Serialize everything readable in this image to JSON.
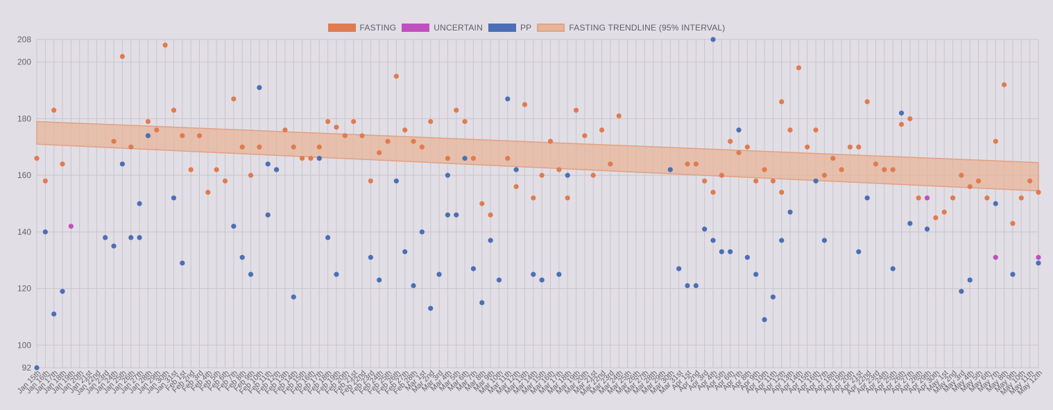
{
  "chart_data": {
    "type": "scatter",
    "title": "",
    "xlabel": "",
    "ylabel": "",
    "ylim": [
      92,
      208
    ],
    "yticks": [
      92,
      100,
      120,
      140,
      160,
      180,
      200,
      208
    ],
    "grid": true,
    "legend_position": "top-center",
    "legend": [
      {
        "label": "FASTING",
        "color": "#e07b4f"
      },
      {
        "label": "UNCERTAIN",
        "color": "#c04fc0"
      },
      {
        "label": "PP",
        "color": "#4a6fb5"
      },
      {
        "label": "FASTING TRENDLINE (95% INTERVAL)",
        "color": "#e8b49a"
      }
    ],
    "x_categories": [
      "Jan 15th",
      "Jan 16th",
      "Jan 17th",
      "Jan 18th",
      "Jan 19th",
      "Jan 20th",
      "Jan 21st",
      "Jan 22nd",
      "Jan 23rd",
      "Jan 24th",
      "Jan 25th",
      "Jan 26th",
      "Jan 27th",
      "Jan 28th",
      "Jan 29th",
      "Jan 30th",
      "Jan 31st",
      "Feb 1st",
      "Feb 2nd",
      "Feb 3rd",
      "Feb 4th",
      "Feb 5th",
      "Feb 6th",
      "Feb 7th",
      "Feb 8th",
      "Feb 9th",
      "Feb 10th",
      "Feb 11th",
      "Feb 12th",
      "Feb 13th",
      "Feb 14th",
      "Feb 15th",
      "Feb 16th",
      "Feb 17th",
      "Feb 18th",
      "Feb 19th",
      "Feb 20th",
      "Feb 21st",
      "Feb 22nd",
      "Feb 23rd",
      "Feb 24th",
      "Feb 25th",
      "Feb 26th",
      "Feb 27th",
      "Feb 28th",
      "Mar 1st",
      "Mar 2nd",
      "Mar 3rd",
      "Mar 4th",
      "Mar 5th",
      "Mar 6th",
      "Mar 7th",
      "Mar 8th",
      "Mar 9th",
      "Mar 10th",
      "Mar 11th",
      "Mar 12th",
      "Mar 13th",
      "Mar 14th",
      "Mar 15th",
      "Mar 16th",
      "Mar 17th",
      "Mar 18th",
      "Mar 19th",
      "Mar 20th",
      "Mar 21st",
      "Mar 22nd",
      "Mar 23rd",
      "Mar 24th",
      "Mar 25th",
      "Mar 26th",
      "Mar 27th",
      "Mar 28th",
      "Mar 29th",
      "Mar 30th",
      "Mar 31st",
      "Apr 1st",
      "Apr 2nd",
      "Apr 3rd",
      "Apr 4th",
      "Apr 5th",
      "Apr 6th",
      "Apr 7th",
      "Apr 8th",
      "Apr 9th",
      "Apr 10th",
      "Apr 11th",
      "Apr 12th",
      "Apr 13th",
      "Apr 14th",
      "Apr 15th",
      "Apr 16th",
      "Apr 17th",
      "Apr 18th",
      "Apr 19th",
      "Apr 20th",
      "Apr 21st",
      "Apr 22nd",
      "Apr 23rd",
      "Apr 24th",
      "Apr 25th",
      "Apr 26th",
      "Apr 27th",
      "Apr 28th",
      "Apr 29th",
      "Apr 30th",
      "May 1st",
      "May 2nd",
      "May 3rd",
      "May 4th",
      "May 5th",
      "May 6th",
      "May 7th",
      "May 8th",
      "May 9th",
      "May 10th",
      "May 11th",
      "May 12th"
    ],
    "series": [
      {
        "name": "FASTING",
        "color": "#e07b4f",
        "points": [
          [
            "Jan 15th",
            166
          ],
          [
            "Jan 16th",
            158
          ],
          [
            "Jan 17th",
            183
          ],
          [
            "Jan 18th",
            164
          ],
          [
            "Jan 24th",
            172
          ],
          [
            "Jan 25th",
            202
          ],
          [
            "Jan 26th",
            170
          ],
          [
            "Jan 28th",
            179
          ],
          [
            "Jan 29th",
            176
          ],
          [
            "Jan 30th",
            206
          ],
          [
            "Jan 31st",
            183
          ],
          [
            "Feb 1st",
            174
          ],
          [
            "Feb 2nd",
            162
          ],
          [
            "Feb 3rd",
            174
          ],
          [
            "Feb 4th",
            154
          ],
          [
            "Feb 5th",
            162
          ],
          [
            "Feb 6th",
            158
          ],
          [
            "Feb 7th",
            187
          ],
          [
            "Feb 8th",
            170
          ],
          [
            "Feb 9th",
            160
          ],
          [
            "Feb 10th",
            170
          ],
          [
            "Feb 12th",
            162
          ],
          [
            "Feb 13th",
            176
          ],
          [
            "Feb 14th",
            170
          ],
          [
            "Feb 15th",
            166
          ],
          [
            "Feb 16th",
            166
          ],
          [
            "Feb 17th",
            170
          ],
          [
            "Feb 18th",
            179
          ],
          [
            "Feb 19th",
            177
          ],
          [
            "Feb 20th",
            174
          ],
          [
            "Feb 21st",
            179
          ],
          [
            "Feb 22nd",
            174
          ],
          [
            "Feb 23rd",
            158
          ],
          [
            "Feb 24th",
            168
          ],
          [
            "Feb 25th",
            172
          ],
          [
            "Feb 26th",
            195
          ],
          [
            "Feb 27th",
            176
          ],
          [
            "Feb 28th",
            172
          ],
          [
            "Mar 1st",
            170
          ],
          [
            "Mar 2nd",
            179
          ],
          [
            "Mar 4th",
            166
          ],
          [
            "Mar 5th",
            183
          ],
          [
            "Mar 6th",
            179
          ],
          [
            "Mar 7th",
            166
          ],
          [
            "Mar 8th",
            150
          ],
          [
            "Mar 9th",
            146
          ],
          [
            "Mar 11th",
            166
          ],
          [
            "Mar 12th",
            156
          ],
          [
            "Mar 13th",
            185
          ],
          [
            "Mar 14th",
            152
          ],
          [
            "Mar 15th",
            160
          ],
          [
            "Mar 16th",
            172
          ],
          [
            "Mar 17th",
            162
          ],
          [
            "Mar 18th",
            152
          ],
          [
            "Mar 19th",
            183
          ],
          [
            "Mar 20th",
            174
          ],
          [
            "Mar 21st",
            160
          ],
          [
            "Mar 22nd",
            176
          ],
          [
            "Mar 23rd",
            164
          ],
          [
            "Mar 24th",
            181
          ],
          [
            "Apr 1st",
            164
          ],
          [
            "Apr 2nd",
            164
          ],
          [
            "Apr 3rd",
            158
          ],
          [
            "Apr 4th",
            154
          ],
          [
            "Apr 5th",
            160
          ],
          [
            "Apr 6th",
            172
          ],
          [
            "Apr 7th",
            168
          ],
          [
            "Apr 8th",
            170
          ],
          [
            "Apr 9th",
            158
          ],
          [
            "Apr 10th",
            162
          ],
          [
            "Apr 11th",
            158
          ],
          [
            "Apr 12th",
            186
          ],
          [
            "Apr 12th",
            154
          ],
          [
            "Apr 13th",
            176
          ],
          [
            "Apr 14th",
            198
          ],
          [
            "Apr 15th",
            170
          ],
          [
            "Apr 16th",
            176
          ],
          [
            "Apr 17th",
            160
          ],
          [
            "Apr 18th",
            166
          ],
          [
            "Apr 19th",
            162
          ],
          [
            "Apr 20th",
            170
          ],
          [
            "Apr 21st",
            170
          ],
          [
            "Apr 22nd",
            186
          ],
          [
            "Apr 23rd",
            164
          ],
          [
            "Apr 24th",
            162
          ],
          [
            "Apr 25th",
            162
          ],
          [
            "Apr 26th",
            178
          ],
          [
            "Apr 27th",
            180
          ],
          [
            "Apr 28th",
            152
          ],
          [
            "Apr 30th",
            145
          ],
          [
            "May 1st",
            147
          ],
          [
            "May 2nd",
            152
          ],
          [
            "May 3rd",
            160
          ],
          [
            "May 4th",
            156
          ],
          [
            "May 5th",
            158
          ],
          [
            "May 6th",
            152
          ],
          [
            "May 7th",
            172
          ],
          [
            "May 8th",
            192
          ],
          [
            "May 9th",
            143
          ],
          [
            "May 10th",
            152
          ],
          [
            "May 11th",
            158
          ],
          [
            "May 12th",
            154
          ]
        ]
      },
      {
        "name": "UNCERTAIN",
        "color": "#c04fc0",
        "points": [
          [
            "Jan 19th",
            142
          ],
          [
            "Apr 29th",
            152
          ],
          [
            "May 7th",
            131
          ],
          [
            "May 12th",
            131
          ]
        ]
      },
      {
        "name": "PP",
        "color": "#4a6fb5",
        "points": [
          [
            "Jan 15th",
            92
          ],
          [
            "Jan 16th",
            140
          ],
          [
            "Jan 17th",
            111
          ],
          [
            "Jan 18th",
            119
          ],
          [
            "Jan 23rd",
            138
          ],
          [
            "Jan 24th",
            135
          ],
          [
            "Jan 25th",
            164
          ],
          [
            "Jan 26th",
            138
          ],
          [
            "Jan 27th",
            150
          ],
          [
            "Jan 27th",
            138
          ],
          [
            "Jan 28th",
            174
          ],
          [
            "Jan 31st",
            152
          ],
          [
            "Feb 1st",
            129
          ],
          [
            "Feb 7th",
            142
          ],
          [
            "Feb 8th",
            131
          ],
          [
            "Feb 9th",
            125
          ],
          [
            "Feb 10th",
            191
          ],
          [
            "Feb 11th",
            146
          ],
          [
            "Feb 11th",
            164
          ],
          [
            "Feb 12th",
            162
          ],
          [
            "Feb 14th",
            117
          ],
          [
            "Feb 17th",
            166
          ],
          [
            "Feb 18th",
            138
          ],
          [
            "Feb 19th",
            125
          ],
          [
            "Feb 23rd",
            131
          ],
          [
            "Feb 24th",
            123
          ],
          [
            "Feb 26th",
            158
          ],
          [
            "Feb 27th",
            133
          ],
          [
            "Feb 28th",
            121
          ],
          [
            "Mar 1st",
            140
          ],
          [
            "Mar 2nd",
            113
          ],
          [
            "Mar 3rd",
            125
          ],
          [
            "Mar 4th",
            160
          ],
          [
            "Mar 4th",
            146
          ],
          [
            "Mar 5th",
            146
          ],
          [
            "Mar 6th",
            166
          ],
          [
            "Mar 7th",
            127
          ],
          [
            "Mar 8th",
            115
          ],
          [
            "Mar 9th",
            137
          ],
          [
            "Mar 10th",
            123
          ],
          [
            "Mar 11th",
            187
          ],
          [
            "Mar 12th",
            162
          ],
          [
            "Mar 14th",
            125
          ],
          [
            "Mar 15th",
            123
          ],
          [
            "Mar 17th",
            125
          ],
          [
            "Mar 18th",
            160
          ],
          [
            "Mar 30th",
            162
          ],
          [
            "Mar 31st",
            127
          ],
          [
            "Apr 1st",
            121
          ],
          [
            "Apr 2nd",
            121
          ],
          [
            "Apr 3rd",
            141
          ],
          [
            "Apr 4th",
            137
          ],
          [
            "Apr 4th",
            208
          ],
          [
            "Apr 5th",
            133
          ],
          [
            "Apr 6th",
            133
          ],
          [
            "Apr 7th",
            176
          ],
          [
            "Apr 8th",
            131
          ],
          [
            "Apr 9th",
            125
          ],
          [
            "Apr 10th",
            109
          ],
          [
            "Apr 11th",
            117
          ],
          [
            "Apr 12th",
            137
          ],
          [
            "Apr 13th",
            147
          ],
          [
            "Apr 16th",
            158
          ],
          [
            "Apr 17th",
            137
          ],
          [
            "Apr 21st",
            133
          ],
          [
            "Apr 22nd",
            152
          ],
          [
            "Apr 25th",
            127
          ],
          [
            "Apr 26th",
            182
          ],
          [
            "Apr 27th",
            143
          ],
          [
            "Apr 29th",
            141
          ],
          [
            "May 3rd",
            119
          ],
          [
            "May 4th",
            123
          ],
          [
            "May 7th",
            150
          ],
          [
            "May 9th",
            125
          ],
          [
            "May 12th",
            129
          ]
        ]
      }
    ],
    "trendline": {
      "name": "FASTING TRENDLINE (95% INTERVAL)",
      "color": "#e8b49a",
      "start": {
        "x": "Jan 15th",
        "lower": 171,
        "upper": 179
      },
      "end": {
        "x": "May 12th",
        "lower": 154.5,
        "upper": 164.5
      }
    }
  }
}
